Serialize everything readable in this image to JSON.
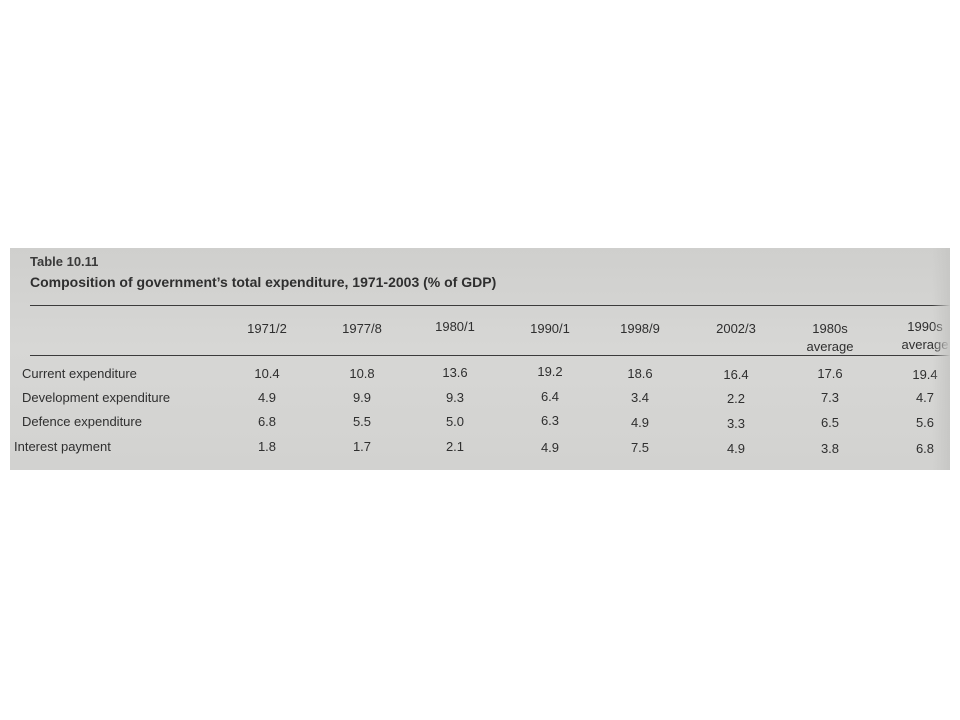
{
  "table": {
    "label": "Table 10.11",
    "title": "Composition of government’s total expenditure, 1971-2003 (% of GDP)",
    "columns": [
      {
        "line1": "1971/2",
        "line2": ""
      },
      {
        "line1": "1977/8",
        "line2": ""
      },
      {
        "line1": "1980/1",
        "line2": ""
      },
      {
        "line1": "1990/1",
        "line2": ""
      },
      {
        "line1": "1998/9",
        "line2": ""
      },
      {
        "line1": "2002/3",
        "line2": ""
      },
      {
        "line1": "1980s",
        "line2": "average"
      },
      {
        "line1": "1990s",
        "line2": "average"
      }
    ],
    "rows": [
      {
        "label": "Current expenditure",
        "values": [
          "10.4",
          "10.8",
          "13.6",
          "19.2",
          "18.6",
          "16.4",
          "17.6",
          "19.4"
        ]
      },
      {
        "label": "Development expenditure",
        "values": [
          "4.9",
          "9.9",
          "9.3",
          "6.4",
          "3.4",
          "2.2",
          "7.3",
          "4.7"
        ]
      },
      {
        "label": "Defence expenditure",
        "values": [
          "6.8",
          "5.5",
          "5.0",
          "6.3",
          "4.9",
          "3.3",
          "6.5",
          "5.6"
        ]
      },
      {
        "label": "Interest payment",
        "values": [
          "1.8",
          "1.7",
          "2.1",
          "4.9",
          "7.5",
          "4.9",
          "3.8",
          "6.8"
        ]
      }
    ]
  }
}
